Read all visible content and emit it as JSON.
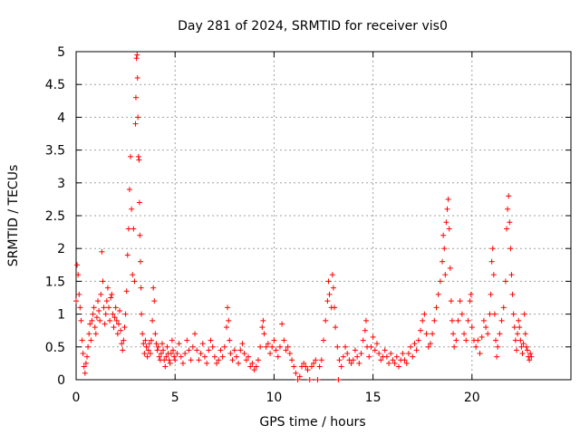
{
  "chart_data": {
    "type": "scatter",
    "title": "Day 281 of 2024, SRMTID for receiver vis0",
    "xlabel": "GPS time / hours",
    "ylabel": "SRMTID / TECUs",
    "xlim": [
      0,
      25
    ],
    "ylim": [
      0,
      5
    ],
    "xticks": [
      0,
      5,
      10,
      15,
      20
    ],
    "xtick_labels": [
      "0",
      "5",
      "10",
      "15",
      "20"
    ],
    "yticks": [
      0,
      0.5,
      1,
      1.5,
      2,
      2.5,
      3,
      3.5,
      4,
      4.5,
      5
    ],
    "ytick_labels": [
      "0",
      "0.5",
      "1",
      "1.5",
      "2",
      "2.5",
      "3",
      "3.5",
      "4",
      "4.5",
      "5"
    ],
    "grid": true,
    "marker": "+",
    "color": "#ff0000",
    "series": [
      {
        "name": "vis0",
        "points": [
          [
            0.0,
            1.2
          ],
          [
            0.05,
            1.75
          ],
          [
            0.1,
            1.6
          ],
          [
            0.15,
            1.3
          ],
          [
            0.2,
            1.1
          ],
          [
            0.25,
            0.9
          ],
          [
            0.3,
            0.6
          ],
          [
            0.35,
            0.4
          ],
          [
            0.4,
            0.2
          ],
          [
            0.45,
            0.1
          ],
          [
            0.5,
            0.25
          ],
          [
            0.55,
            0.35
          ],
          [
            0.6,
            0.5
          ],
          [
            0.65,
            0.7
          ],
          [
            0.7,
            0.85
          ],
          [
            0.75,
            0.6
          ],
          [
            0.8,
            0.9
          ],
          [
            0.85,
            1.0
          ],
          [
            0.9,
            1.1
          ],
          [
            0.95,
            0.8
          ],
          [
            1.0,
            0.7
          ],
          [
            1.05,
            0.95
          ],
          [
            1.1,
            1.2
          ],
          [
            1.15,
            1.05
          ],
          [
            1.2,
            0.9
          ],
          [
            1.25,
            1.3
          ],
          [
            1.3,
            1.95
          ],
          [
            1.35,
            1.5
          ],
          [
            1.4,
            1.1
          ],
          [
            1.45,
            0.85
          ],
          [
            1.5,
            1.0
          ],
          [
            1.55,
            1.2
          ],
          [
            1.6,
            1.4
          ],
          [
            1.65,
            1.1
          ],
          [
            1.7,
            0.9
          ],
          [
            1.75,
            1.25
          ],
          [
            1.8,
            1.3
          ],
          [
            1.85,
            1.0
          ],
          [
            1.9,
            0.8
          ],
          [
            1.95,
            0.95
          ],
          [
            2.0,
            1.1
          ],
          [
            2.05,
            0.9
          ],
          [
            2.1,
            0.7
          ],
          [
            2.15,
            0.85
          ],
          [
            2.2,
            1.05
          ],
          [
            2.25,
            0.75
          ],
          [
            2.3,
            0.55
          ],
          [
            2.35,
            0.45
          ],
          [
            2.4,
            0.6
          ],
          [
            2.45,
            0.8
          ],
          [
            2.5,
            1.0
          ],
          [
            2.55,
            1.35
          ],
          [
            2.6,
            1.9
          ],
          [
            2.65,
            2.3
          ],
          [
            2.7,
            2.9
          ],
          [
            2.75,
            3.4
          ],
          [
            2.8,
            2.6
          ],
          [
            2.85,
            1.6
          ],
          [
            2.9,
            2.3
          ],
          [
            2.95,
            1.5
          ],
          [
            3.0,
            3.9
          ],
          [
            3.02,
            4.3
          ],
          [
            3.05,
            4.9
          ],
          [
            3.08,
            4.95
          ],
          [
            3.1,
            4.6
          ],
          [
            3.12,
            4.0
          ],
          [
            3.15,
            3.4
          ],
          [
            3.18,
            3.35
          ],
          [
            3.2,
            2.7
          ],
          [
            3.22,
            2.2
          ],
          [
            3.25,
            1.8
          ],
          [
            3.28,
            1.4
          ],
          [
            3.3,
            1.0
          ],
          [
            3.35,
            0.7
          ],
          [
            3.4,
            0.55
          ],
          [
            3.45,
            0.4
          ],
          [
            3.5,
            0.6
          ],
          [
            3.55,
            0.5
          ],
          [
            3.6,
            0.35
          ],
          [
            3.65,
            0.45
          ],
          [
            3.7,
            0.55
          ],
          [
            3.75,
            0.4
          ],
          [
            3.8,
            0.6
          ],
          [
            3.85,
            0.9
          ],
          [
            3.9,
            1.4
          ],
          [
            3.95,
            1.2
          ],
          [
            4.0,
            0.7
          ],
          [
            4.05,
            0.55
          ],
          [
            4.1,
            0.45
          ],
          [
            4.15,
            0.5
          ],
          [
            4.2,
            0.35
          ],
          [
            4.25,
            0.3
          ],
          [
            4.3,
            0.4
          ],
          [
            4.35,
            0.55
          ],
          [
            4.4,
            0.45
          ],
          [
            4.45,
            0.3
          ],
          [
            4.5,
            0.2
          ],
          [
            4.55,
            0.35
          ],
          [
            4.6,
            0.5
          ],
          [
            4.65,
            0.4
          ],
          [
            4.7,
            0.3
          ],
          [
            4.75,
            0.25
          ],
          [
            4.8,
            0.4
          ],
          [
            4.85,
            0.6
          ],
          [
            4.9,
            0.45
          ],
          [
            4.95,
            0.35
          ],
          [
            5.0,
            0.3
          ],
          [
            5.1,
            0.4
          ],
          [
            5.2,
            0.55
          ],
          [
            5.3,
            0.35
          ],
          [
            5.4,
            0.25
          ],
          [
            5.5,
            0.4
          ],
          [
            5.6,
            0.6
          ],
          [
            5.7,
            0.45
          ],
          [
            5.8,
            0.3
          ],
          [
            5.9,
            0.5
          ],
          [
            6.0,
            0.7
          ],
          [
            6.1,
            0.45
          ],
          [
            6.2,
            0.3
          ],
          [
            6.3,
            0.4
          ],
          [
            6.4,
            0.55
          ],
          [
            6.5,
            0.35
          ],
          [
            6.6,
            0.25
          ],
          [
            6.7,
            0.45
          ],
          [
            6.8,
            0.6
          ],
          [
            6.9,
            0.5
          ],
          [
            7.0,
            0.35
          ],
          [
            7.1,
            0.25
          ],
          [
            7.2,
            0.3
          ],
          [
            7.3,
            0.45
          ],
          [
            7.4,
            0.35
          ],
          [
            7.5,
            0.5
          ],
          [
            7.6,
            0.8
          ],
          [
            7.65,
            1.1
          ],
          [
            7.7,
            0.9
          ],
          [
            7.75,
            0.6
          ],
          [
            7.8,
            0.4
          ],
          [
            7.9,
            0.3
          ],
          [
            8.0,
            0.45
          ],
          [
            8.1,
            0.35
          ],
          [
            8.2,
            0.25
          ],
          [
            8.3,
            0.45
          ],
          [
            8.4,
            0.55
          ],
          [
            8.5,
            0.4
          ],
          [
            8.6,
            0.3
          ],
          [
            8.7,
            0.35
          ],
          [
            8.8,
            0.2
          ],
          [
            8.9,
            0.25
          ],
          [
            9.0,
            0.15
          ],
          [
            9.1,
            0.2
          ],
          [
            9.2,
            0.3
          ],
          [
            9.3,
            0.5
          ],
          [
            9.4,
            0.8
          ],
          [
            9.45,
            0.9
          ],
          [
            9.5,
            0.7
          ],
          [
            9.6,
            0.5
          ],
          [
            9.7,
            0.55
          ],
          [
            9.8,
            0.4
          ],
          [
            9.9,
            0.5
          ],
          [
            10.0,
            0.6
          ],
          [
            10.1,
            0.45
          ],
          [
            10.2,
            0.35
          ],
          [
            10.3,
            0.5
          ],
          [
            10.4,
            0.85
          ],
          [
            10.5,
            0.6
          ],
          [
            10.6,
            0.45
          ],
          [
            10.7,
            0.5
          ],
          [
            10.8,
            0.4
          ],
          [
            10.9,
            0.3
          ],
          [
            11.0,
            0.2
          ],
          [
            11.1,
            0.1
          ],
          [
            11.2,
            0.0
          ],
          [
            11.3,
            0.05
          ],
          [
            11.4,
            0.2
          ],
          [
            11.5,
            0.25
          ],
          [
            11.6,
            0.2
          ],
          [
            11.7,
            0.15
          ],
          [
            11.8,
            0.0
          ],
          [
            11.9,
            0.2
          ],
          [
            12.0,
            0.25
          ],
          [
            12.1,
            0.3
          ],
          [
            12.2,
            0.0
          ],
          [
            12.3,
            0.2
          ],
          [
            12.4,
            0.3
          ],
          [
            12.5,
            0.6
          ],
          [
            12.6,
            0.9
          ],
          [
            12.7,
            1.2
          ],
          [
            12.75,
            1.5
          ],
          [
            12.8,
            1.3
          ],
          [
            12.9,
            1.1
          ],
          [
            12.95,
            1.6
          ],
          [
            13.0,
            1.4
          ],
          [
            13.05,
            1.1
          ],
          [
            13.1,
            0.8
          ],
          [
            13.2,
            0.5
          ],
          [
            13.25,
            0.0
          ],
          [
            13.3,
            0.3
          ],
          [
            13.4,
            0.2
          ],
          [
            13.5,
            0.35
          ],
          [
            13.6,
            0.5
          ],
          [
            13.7,
            0.4
          ],
          [
            13.8,
            0.3
          ],
          [
            13.9,
            0.25
          ],
          [
            14.0,
            0.3
          ],
          [
            14.1,
            0.45
          ],
          [
            14.2,
            0.35
          ],
          [
            14.3,
            0.25
          ],
          [
            14.4,
            0.4
          ],
          [
            14.5,
            0.6
          ],
          [
            14.6,
            0.75
          ],
          [
            14.65,
            0.9
          ],
          [
            14.7,
            0.5
          ],
          [
            14.8,
            0.35
          ],
          [
            14.9,
            0.5
          ],
          [
            15.0,
            0.65
          ],
          [
            15.1,
            0.45
          ],
          [
            15.2,
            0.55
          ],
          [
            15.3,
            0.4
          ],
          [
            15.4,
            0.3
          ],
          [
            15.5,
            0.35
          ],
          [
            15.6,
            0.45
          ],
          [
            15.7,
            0.35
          ],
          [
            15.8,
            0.25
          ],
          [
            15.9,
            0.4
          ],
          [
            16.0,
            0.3
          ],
          [
            16.1,
            0.25
          ],
          [
            16.2,
            0.35
          ],
          [
            16.3,
            0.2
          ],
          [
            16.4,
            0.3
          ],
          [
            16.5,
            0.4
          ],
          [
            16.6,
            0.3
          ],
          [
            16.7,
            0.25
          ],
          [
            16.8,
            0.4
          ],
          [
            16.9,
            0.5
          ],
          [
            17.0,
            0.35
          ],
          [
            17.1,
            0.55
          ],
          [
            17.2,
            0.45
          ],
          [
            17.3,
            0.6
          ],
          [
            17.4,
            0.75
          ],
          [
            17.5,
            0.9
          ],
          [
            17.6,
            1.0
          ],
          [
            17.7,
            0.7
          ],
          [
            17.8,
            0.5
          ],
          [
            17.9,
            0.55
          ],
          [
            18.0,
            0.7
          ],
          [
            18.1,
            0.9
          ],
          [
            18.2,
            1.1
          ],
          [
            18.3,
            1.3
          ],
          [
            18.4,
            1.5
          ],
          [
            18.5,
            1.8
          ],
          [
            18.55,
            2.2
          ],
          [
            18.6,
            2.0
          ],
          [
            18.65,
            1.6
          ],
          [
            18.7,
            2.4
          ],
          [
            18.75,
            2.6
          ],
          [
            18.8,
            2.75
          ],
          [
            18.85,
            2.3
          ],
          [
            18.9,
            1.7
          ],
          [
            18.95,
            1.2
          ],
          [
            19.0,
            0.9
          ],
          [
            19.05,
            0.7
          ],
          [
            19.1,
            0.5
          ],
          [
            19.2,
            0.6
          ],
          [
            19.3,
            0.9
          ],
          [
            19.4,
            1.2
          ],
          [
            19.5,
            1.0
          ],
          [
            19.6,
            0.7
          ],
          [
            19.7,
            0.6
          ],
          [
            19.8,
            0.9
          ],
          [
            19.9,
            1.2
          ],
          [
            19.95,
            1.3
          ],
          [
            20.0,
            0.8
          ],
          [
            20.1,
            0.6
          ],
          [
            20.2,
            0.5
          ],
          [
            20.3,
            0.6
          ],
          [
            20.4,
            0.4
          ],
          [
            20.5,
            0.65
          ],
          [
            20.6,
            0.9
          ],
          [
            20.7,
            0.8
          ],
          [
            20.8,
            0.7
          ],
          [
            20.9,
            1.0
          ],
          [
            20.95,
            1.3
          ],
          [
            21.0,
            1.8
          ],
          [
            21.05,
            2.0
          ],
          [
            21.1,
            1.6
          ],
          [
            21.15,
            1.0
          ],
          [
            21.2,
            0.6
          ],
          [
            21.25,
            0.35
          ],
          [
            21.3,
            0.5
          ],
          [
            21.4,
            0.7
          ],
          [
            21.5,
            0.9
          ],
          [
            21.6,
            1.1
          ],
          [
            21.7,
            1.5
          ],
          [
            21.75,
            2.3
          ],
          [
            21.8,
            2.6
          ],
          [
            21.85,
            2.8
          ],
          [
            21.9,
            2.4
          ],
          [
            21.95,
            2.0
          ],
          [
            22.0,
            1.6
          ],
          [
            22.05,
            1.3
          ],
          [
            22.1,
            1.0
          ],
          [
            22.15,
            0.8
          ],
          [
            22.2,
            0.6
          ],
          [
            22.25,
            0.45
          ],
          [
            22.3,
            0.7
          ],
          [
            22.35,
            0.9
          ],
          [
            22.4,
            0.8
          ],
          [
            22.45,
            0.6
          ],
          [
            22.5,
            0.5
          ],
          [
            22.55,
            0.4
          ],
          [
            22.6,
            0.55
          ],
          [
            22.65,
            1.0
          ],
          [
            22.7,
            0.7
          ],
          [
            22.75,
            0.5
          ],
          [
            22.8,
            0.45
          ],
          [
            22.85,
            0.35
          ],
          [
            22.9,
            0.3
          ],
          [
            22.95,
            0.4
          ],
          [
            23.0,
            0.35
          ]
        ]
      }
    ]
  }
}
